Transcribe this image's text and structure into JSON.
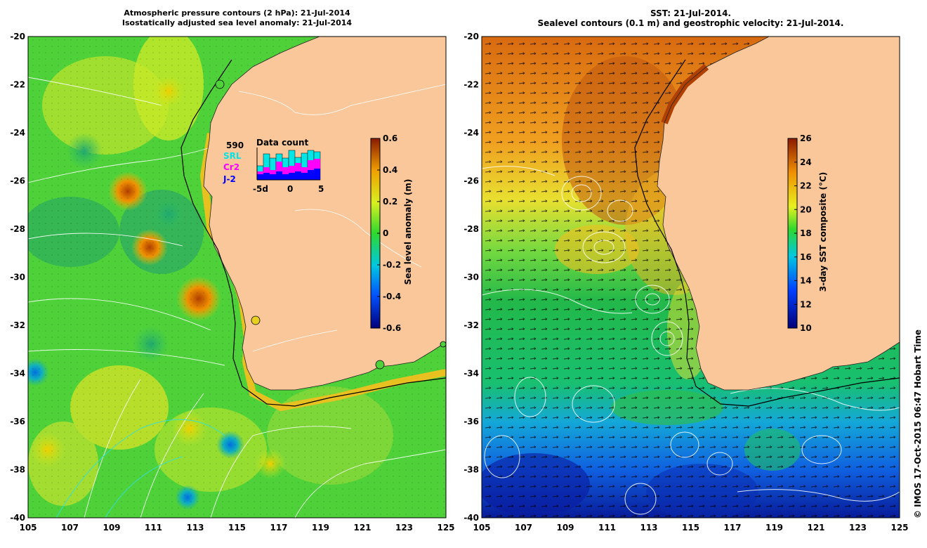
{
  "left_panel": {
    "title_line1": "Atmospheric pressure contours (2 hPa): 21-Jul-2014",
    "title_line2": "Isostatically adjusted sea level anomaly: 21-Jul-2014",
    "colorbar": {
      "label": "Sea level anomaly (m)",
      "ticks": [
        "0.6",
        "0.4",
        "0.2",
        "0",
        "-0.2",
        "-0.4",
        "-0.6"
      ],
      "range": [
        -0.6,
        0.6
      ]
    },
    "inset": {
      "title": "Data count",
      "count": "590",
      "missions": [
        {
          "name": "SRL",
          "color": "#00e5e5"
        },
        {
          "name": "Cr2",
          "color": "#ff00ff"
        },
        {
          "name": "J-2",
          "color": "#0000ff"
        }
      ],
      "x_ticks": [
        "-5d",
        "0",
        "5"
      ]
    }
  },
  "right_panel": {
    "title_line1": "SST: 21-Jul-2014.",
    "title_line2": "Sealevel contours (0.1 m) and geostrophic velocity: 21-Jul-2014.",
    "colorbar": {
      "label": "3-day SST composite (°C)",
      "ticks": [
        "26",
        "24",
        "22",
        "20",
        "18",
        "16",
        "14",
        "12",
        "10"
      ],
      "range": [
        10,
        26
      ]
    }
  },
  "axes": {
    "lat_ticks": [
      "-20",
      "-22",
      "-24",
      "-26",
      "-28",
      "-30",
      "-32",
      "-34",
      "-36",
      "-38",
      "-40"
    ],
    "lon_ticks": [
      "105",
      "107",
      "109",
      "111",
      "113",
      "115",
      "117",
      "119",
      "121",
      "123",
      "125"
    ],
    "lat_range": [
      -40,
      -20
    ],
    "lon_range": [
      105,
      125
    ]
  },
  "credit": "© IMOS 17-Oct-2015 06:47 Hobart Time"
}
